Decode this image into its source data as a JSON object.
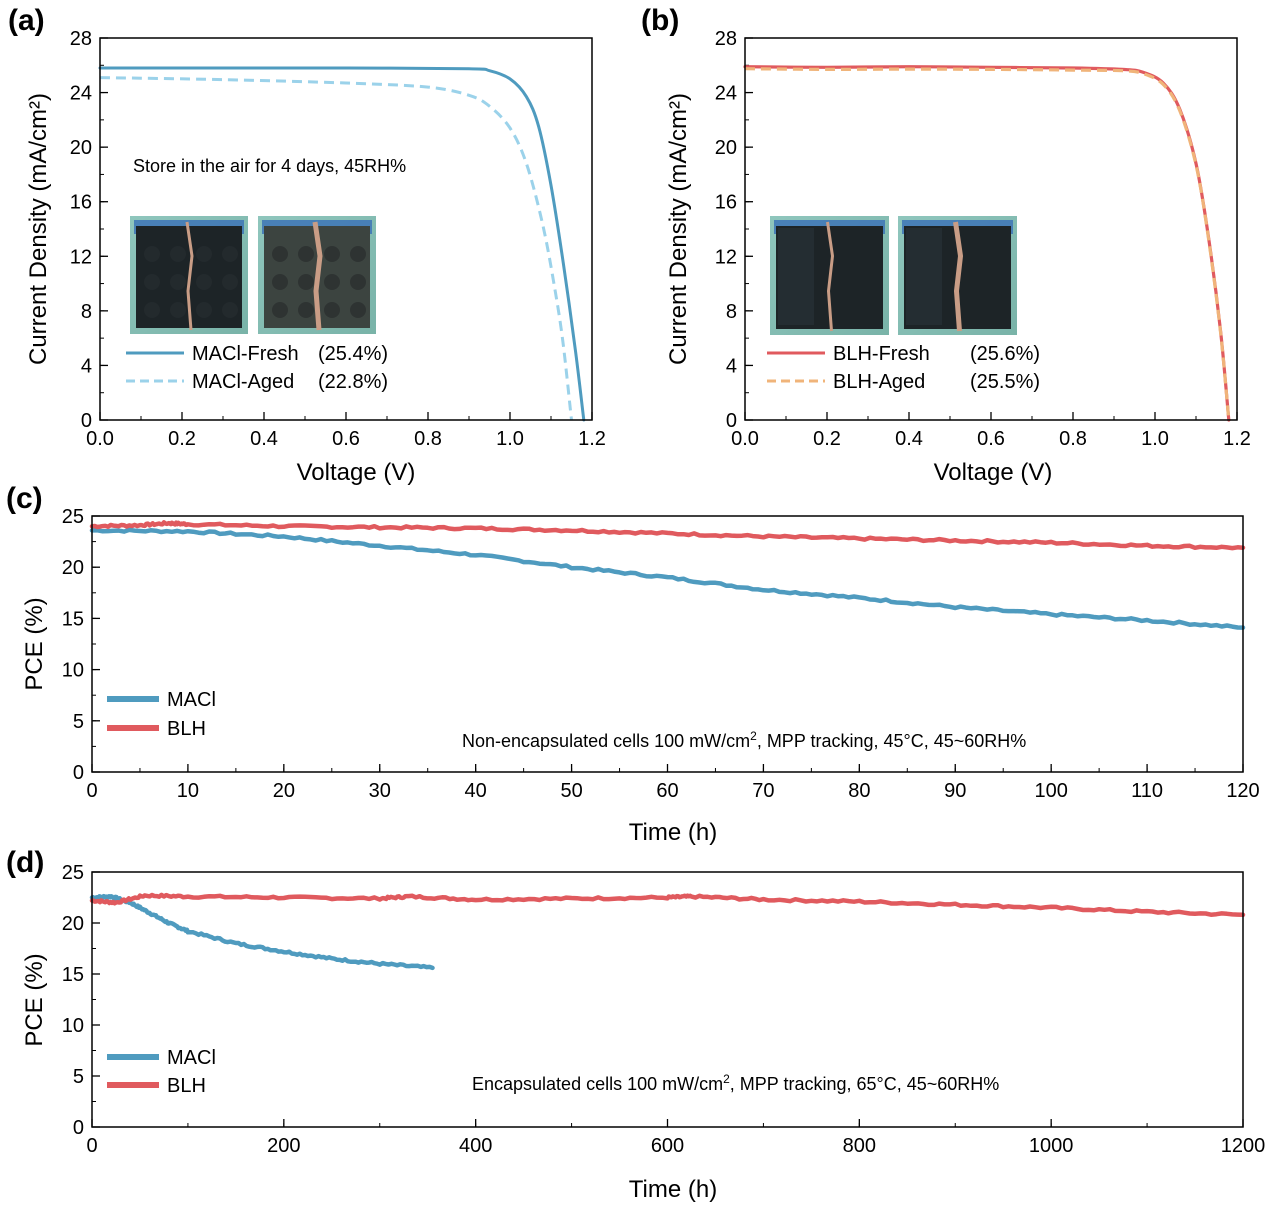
{
  "chart_data": [
    {
      "id": "a",
      "panel_label": "(a)",
      "type": "line",
      "xlabel": "Voltage (V)",
      "ylabel": "Current Density (mA/cm²)",
      "xlim": [
        0,
        1.2
      ],
      "ylim": [
        0,
        28
      ],
      "xticks": [
        0.0,
        0.2,
        0.4,
        0.6,
        0.8,
        1.0,
        1.2
      ],
      "yticks": [
        0,
        4,
        8,
        12,
        16,
        20,
        24,
        28
      ],
      "xtick_labels": [
        "0.0",
        "0.2",
        "0.4",
        "0.6",
        "0.8",
        "1.0",
        "1.2"
      ],
      "ytick_labels": [
        "0",
        "4",
        "8",
        "12",
        "16",
        "20",
        "24",
        "28"
      ],
      "annotation": "Store in the air for 4 days, 45RH%",
      "insets": [
        "fresh-device-photo",
        "aged-device-photo"
      ],
      "legend": {
        "position": "bottom-left"
      },
      "series": [
        {
          "name": "MACl-Fresh",
          "value_label": "(25.4%)",
          "color": "#4f9bbf",
          "style": "solid",
          "x": [
            0,
            0.3,
            0.6,
            0.9,
            0.95,
            1.0,
            1.04,
            1.07,
            1.1,
            1.13,
            1.16,
            1.18
          ],
          "y": [
            25.8,
            25.8,
            25.8,
            25.75,
            25.6,
            25.0,
            23.7,
            21.5,
            17.2,
            11.5,
            5.0,
            0
          ]
        },
        {
          "name": "MACl-Aged",
          "value_label": "(22.8%)",
          "color": "#9bd2ea",
          "style": "dashed",
          "x": [
            0,
            0.3,
            0.6,
            0.8,
            0.9,
            0.95,
            1.0,
            1.04,
            1.08,
            1.11,
            1.13,
            1.15
          ],
          "y": [
            25.1,
            24.95,
            24.7,
            24.4,
            23.8,
            23.0,
            21.4,
            18.8,
            14.3,
            9.5,
            5.5,
            0
          ]
        }
      ]
    },
    {
      "id": "b",
      "panel_label": "(b)",
      "type": "line",
      "xlabel": "Voltage (V)",
      "ylabel": "Current Density (mA/cm²)",
      "xlim": [
        0,
        1.2
      ],
      "ylim": [
        0,
        28
      ],
      "xticks": [
        0.0,
        0.2,
        0.4,
        0.6,
        0.8,
        1.0,
        1.2
      ],
      "yticks": [
        0,
        4,
        8,
        12,
        16,
        20,
        24,
        28
      ],
      "xtick_labels": [
        "0.0",
        "0.2",
        "0.4",
        "0.6",
        "0.8",
        "1.0",
        "1.2"
      ],
      "ytick_labels": [
        "0",
        "4",
        "8",
        "12",
        "16",
        "20",
        "24",
        "28"
      ],
      "insets": [
        "fresh-device-photo",
        "aged-device-photo"
      ],
      "legend": {
        "position": "bottom-left"
      },
      "series": [
        {
          "name": "BLH-Fresh",
          "value_label": "(25.6%)",
          "color": "#e05a5e",
          "style": "solid",
          "x": [
            0,
            0.2,
            0.4,
            0.6,
            0.8,
            0.92,
            0.97,
            1.02,
            1.06,
            1.1,
            1.13,
            1.16,
            1.18
          ],
          "y": [
            25.9,
            25.85,
            25.9,
            25.85,
            25.8,
            25.7,
            25.5,
            24.7,
            22.8,
            18.8,
            13.5,
            6.5,
            0
          ]
        },
        {
          "name": "BLH-Aged",
          "value_label": "(25.5%)",
          "color": "#f0b47a",
          "style": "dashed",
          "x": [
            0,
            0.2,
            0.4,
            0.6,
            0.8,
            0.92,
            0.97,
            1.02,
            1.06,
            1.1,
            1.13,
            1.16,
            1.18
          ],
          "y": [
            25.75,
            25.7,
            25.72,
            25.7,
            25.65,
            25.6,
            25.4,
            24.6,
            22.7,
            18.7,
            13.4,
            6.4,
            0
          ]
        }
      ]
    },
    {
      "id": "c",
      "panel_label": "(c)",
      "type": "line",
      "xlabel": "Time (h)",
      "ylabel": "PCE (%)",
      "xlim": [
        0,
        120
      ],
      "ylim": [
        0,
        25
      ],
      "xticks": [
        0,
        10,
        20,
        30,
        40,
        50,
        60,
        70,
        80,
        90,
        100,
        110,
        120
      ],
      "yticks": [
        0,
        5,
        10,
        15,
        20,
        25
      ],
      "xtick_labels": [
        "0",
        "10",
        "20",
        "30",
        "40",
        "50",
        "60",
        "70",
        "80",
        "90",
        "100",
        "110",
        "120"
      ],
      "ytick_labels": [
        "0",
        "5",
        "10",
        "15",
        "20",
        "25"
      ],
      "annotation_parts": [
        "Non-encapsulated  cells 100 mW/cm",
        "2",
        ", MPP tracking, 45°C, 45~60RH%"
      ],
      "legend": {
        "position": "bottom-left"
      },
      "series": [
        {
          "name": "MACl",
          "color": "#4f9bbf",
          "x": [
            0,
            10,
            20,
            30,
            40,
            50,
            60,
            70,
            80,
            90,
            100,
            110,
            120
          ],
          "y": [
            23.6,
            23.5,
            23.0,
            22.1,
            21.2,
            20.0,
            19.0,
            17.8,
            17.0,
            16.1,
            15.4,
            14.8,
            14.1
          ]
        },
        {
          "name": "BLH",
          "color": "#e05a5e",
          "x": [
            0,
            5,
            8,
            10,
            20,
            30,
            40,
            50,
            60,
            70,
            80,
            90,
            100,
            110,
            120
          ],
          "y": [
            24.0,
            24.1,
            24.3,
            24.2,
            24.0,
            23.9,
            23.8,
            23.6,
            23.3,
            23.0,
            22.8,
            22.6,
            22.4,
            22.1,
            21.9
          ]
        }
      ]
    },
    {
      "id": "d",
      "panel_label": "(d)",
      "type": "line",
      "xlabel": "Time (h)",
      "ylabel": "PCE (%)",
      "xlim": [
        0,
        1200
      ],
      "ylim": [
        0,
        25
      ],
      "xticks": [
        0,
        200,
        400,
        600,
        800,
        1000,
        1200
      ],
      "yticks": [
        0,
        5,
        10,
        15,
        20,
        25
      ],
      "xtick_labels": [
        "0",
        "200",
        "400",
        "600",
        "800",
        "1000",
        "1200"
      ],
      "ytick_labels": [
        "0",
        "5",
        "10",
        "15",
        "20",
        "25"
      ],
      "annotation_parts": [
        "Encapsulated cells 100 mW/cm",
        "2",
        ", MPP tracking, 65°C, 45~60RH%"
      ],
      "legend": {
        "position": "bottom-left"
      },
      "series": [
        {
          "name": "MACl",
          "color": "#4f9bbf",
          "x": [
            0,
            20,
            40,
            60,
            80,
            100,
            150,
            200,
            250,
            300,
            355
          ],
          "y": [
            22.5,
            22.6,
            22.0,
            21.0,
            20.0,
            19.2,
            18.0,
            17.2,
            16.5,
            16.0,
            15.6
          ]
        },
        {
          "name": "BLH",
          "color": "#e05a5e",
          "x": [
            0,
            25,
            55,
            100,
            200,
            300,
            330,
            400,
            500,
            600,
            625,
            700,
            800,
            900,
            1000,
            1100,
            1200
          ],
          "y": [
            22.2,
            22.0,
            22.7,
            22.6,
            22.5,
            22.4,
            22.6,
            22.3,
            22.4,
            22.5,
            22.6,
            22.3,
            22.1,
            21.8,
            21.5,
            21.1,
            20.8
          ]
        }
      ]
    }
  ]
}
